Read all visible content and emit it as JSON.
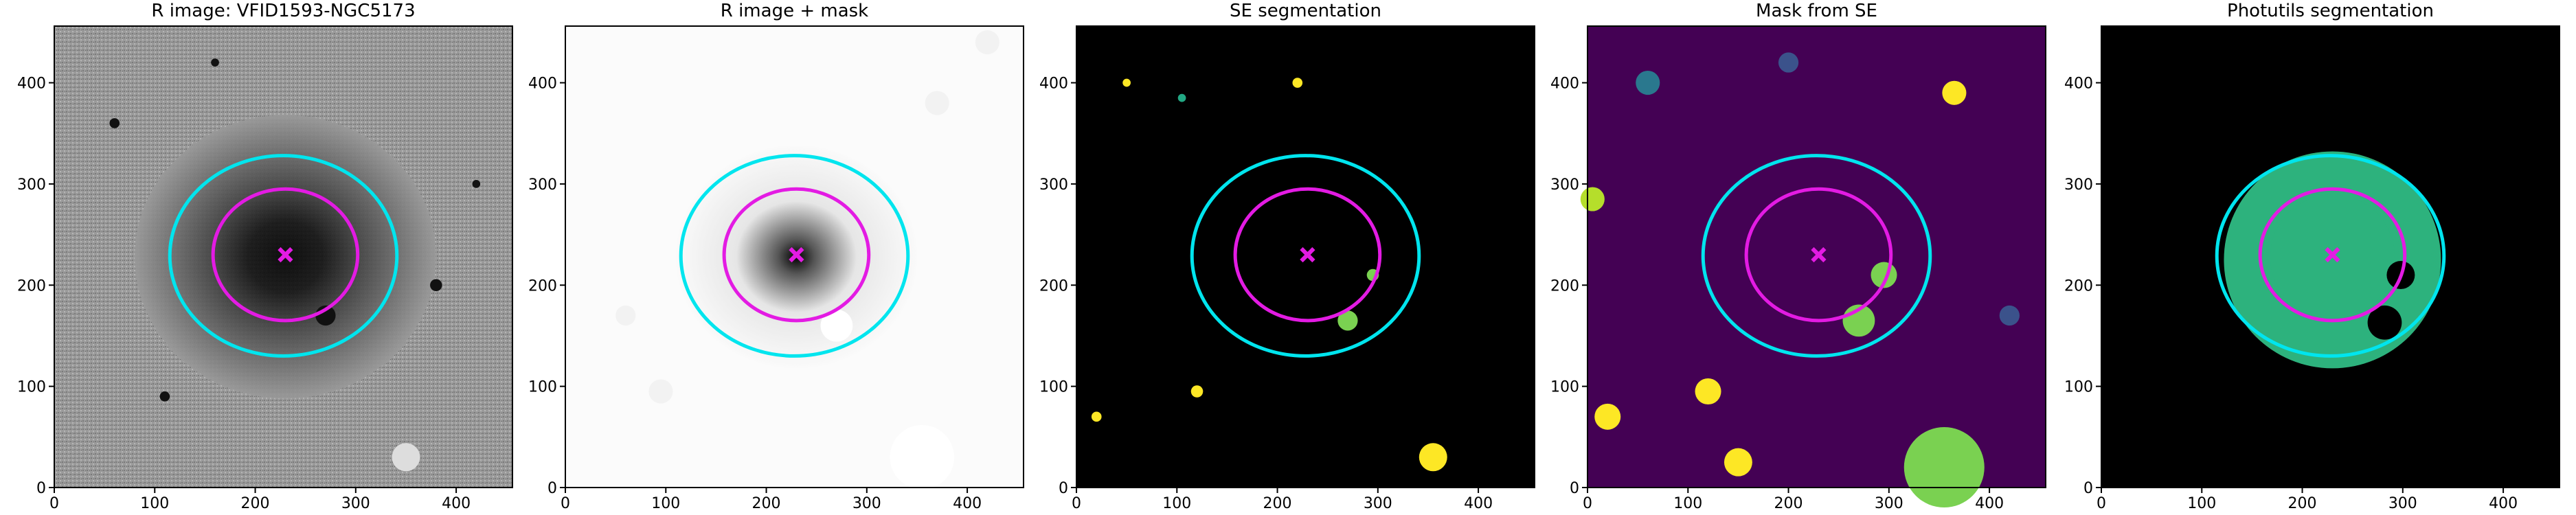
{
  "chart_data": [
    {
      "type": "image",
      "title": "R image: VFID1593-NGC5173",
      "xlim": [
        0,
        456
      ],
      "ylim": [
        0,
        456
      ],
      "xticks": [
        0,
        100,
        200,
        300,
        400
      ],
      "yticks": [
        0,
        100,
        200,
        300,
        400
      ]
    },
    {
      "type": "image",
      "title": "R image + mask",
      "xlim": [
        0,
        456
      ],
      "ylim": [
        0,
        456
      ],
      "xticks": [
        0,
        100,
        200,
        300,
        400
      ],
      "yticks": [
        0,
        100,
        200,
        300,
        400
      ]
    },
    {
      "type": "image",
      "title": "SE segmentation",
      "xlim": [
        0,
        456
      ],
      "ylim": [
        0,
        456
      ],
      "xticks": [
        0,
        100,
        200,
        300,
        400
      ],
      "yticks": [
        0,
        100,
        200,
        300,
        400
      ]
    },
    {
      "type": "image",
      "title": "Mask from SE",
      "xlim": [
        0,
        456
      ],
      "ylim": [
        0,
        456
      ],
      "xticks": [
        0,
        100,
        200,
        300,
        400
      ],
      "yticks": [
        0,
        100,
        200,
        300,
        400
      ]
    },
    {
      "type": "image",
      "title": "Photutils segmentation",
      "xlim": [
        0,
        456
      ],
      "ylim": [
        0,
        456
      ],
      "xticks": [
        0,
        100,
        200,
        300,
        400
      ],
      "yticks": [
        0,
        100,
        200,
        300,
        400
      ]
    }
  ]
}
